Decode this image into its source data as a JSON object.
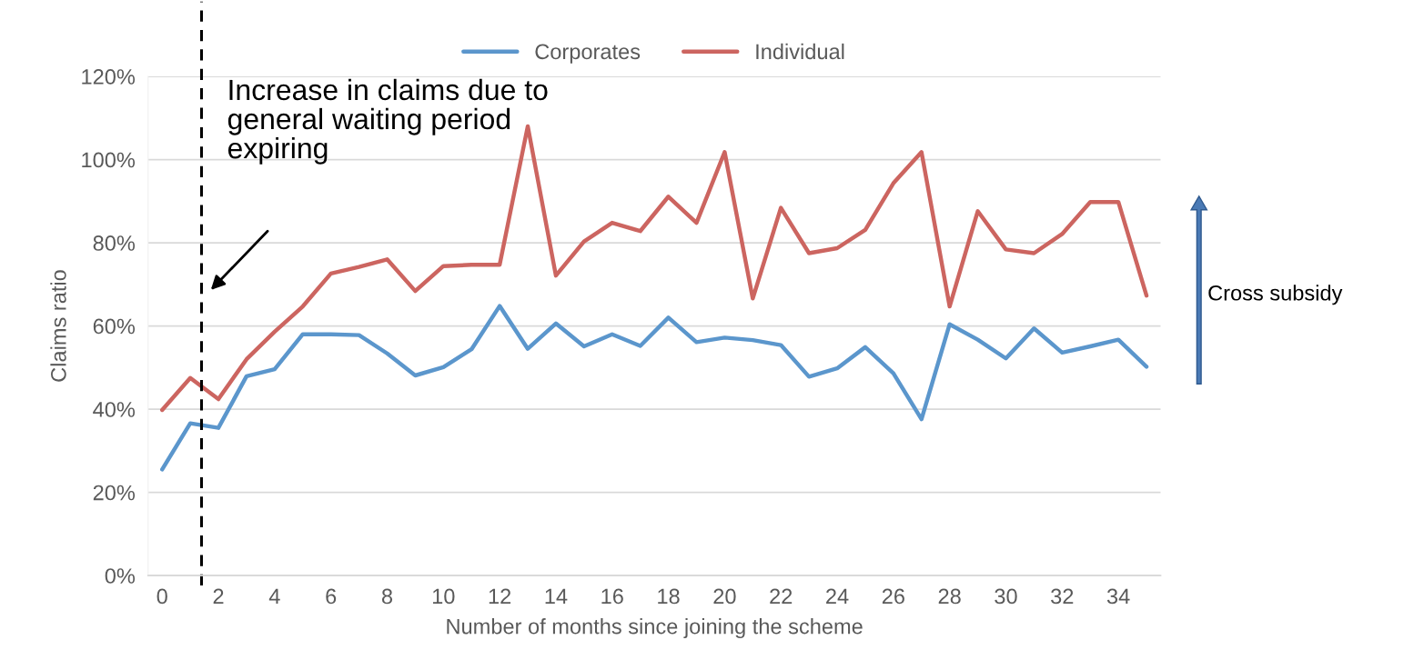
{
  "chart_data": {
    "type": "line",
    "xlabel": "Number of months since joining the scheme",
    "ylabel": "Claims ratio",
    "x": [
      0,
      1,
      2,
      3,
      4,
      5,
      6,
      7,
      8,
      9,
      10,
      11,
      12,
      13,
      14,
      15,
      16,
      17,
      18,
      19,
      20,
      21,
      22,
      23,
      24,
      25,
      26,
      27,
      28,
      29,
      30,
      31,
      32,
      33,
      34,
      35
    ],
    "series": [
      {
        "name": "Corporates",
        "color": "#5b96cc",
        "values": [
          25.5,
          36.6,
          35.5,
          47.9,
          49.6,
          58.0,
          58.0,
          57.8,
          53.4,
          48.1,
          50.1,
          54.4,
          64.8,
          54.5,
          60.6,
          55.1,
          58.0,
          55.2,
          62.0,
          56.1,
          57.2,
          56.6,
          55.4,
          47.8,
          49.8,
          54.9,
          48.6,
          37.6,
          60.4,
          56.7,
          52.2,
          59.4,
          53.6,
          55.1,
          56.7,
          50.2
        ]
      },
      {
        "name": "Individual",
        "color": "#cc6560",
        "values": [
          39.8,
          47.5,
          42.4,
          52.0,
          58.6,
          64.7,
          72.6,
          74.2,
          76.0,
          68.4,
          74.4,
          74.7,
          74.7,
          108,
          72.1,
          80.3,
          84.8,
          82.8,
          91.1,
          84.8,
          101.8,
          66.6,
          88.4,
          77.5,
          78.7,
          83.1,
          94.3,
          101.8,
          64.7,
          87.6,
          78.4,
          77.5,
          82.1,
          89.8,
          89.8,
          67.3
        ]
      }
    ],
    "xlim": [
      -0.5,
      35.5
    ],
    "xticks": [
      0,
      2,
      4,
      6,
      8,
      10,
      12,
      14,
      16,
      18,
      20,
      22,
      24,
      26,
      28,
      30,
      32,
      34
    ],
    "ylim": [
      0,
      120
    ],
    "yticks": [
      {
        "value": 0,
        "label": "0%"
      },
      {
        "value": 20,
        "label": "20%"
      },
      {
        "value": 40,
        "label": "40%"
      },
      {
        "value": 60,
        "label": "60%"
      },
      {
        "value": 80,
        "label": "80%"
      },
      {
        "value": 100,
        "label": "100%"
      },
      {
        "value": 120,
        "label": "120%"
      }
    ],
    "grid": "y",
    "legend": "top",
    "marker": "none",
    "line_style": "solid",
    "ref_lines": [
      {
        "axis": "x",
        "value": 1.4,
        "color": "#000000",
        "line_style": "dashed"
      }
    ],
    "annotations": [
      "Increase in claims due to general waiting period expiring",
      "Cross subsidy"
    ]
  }
}
